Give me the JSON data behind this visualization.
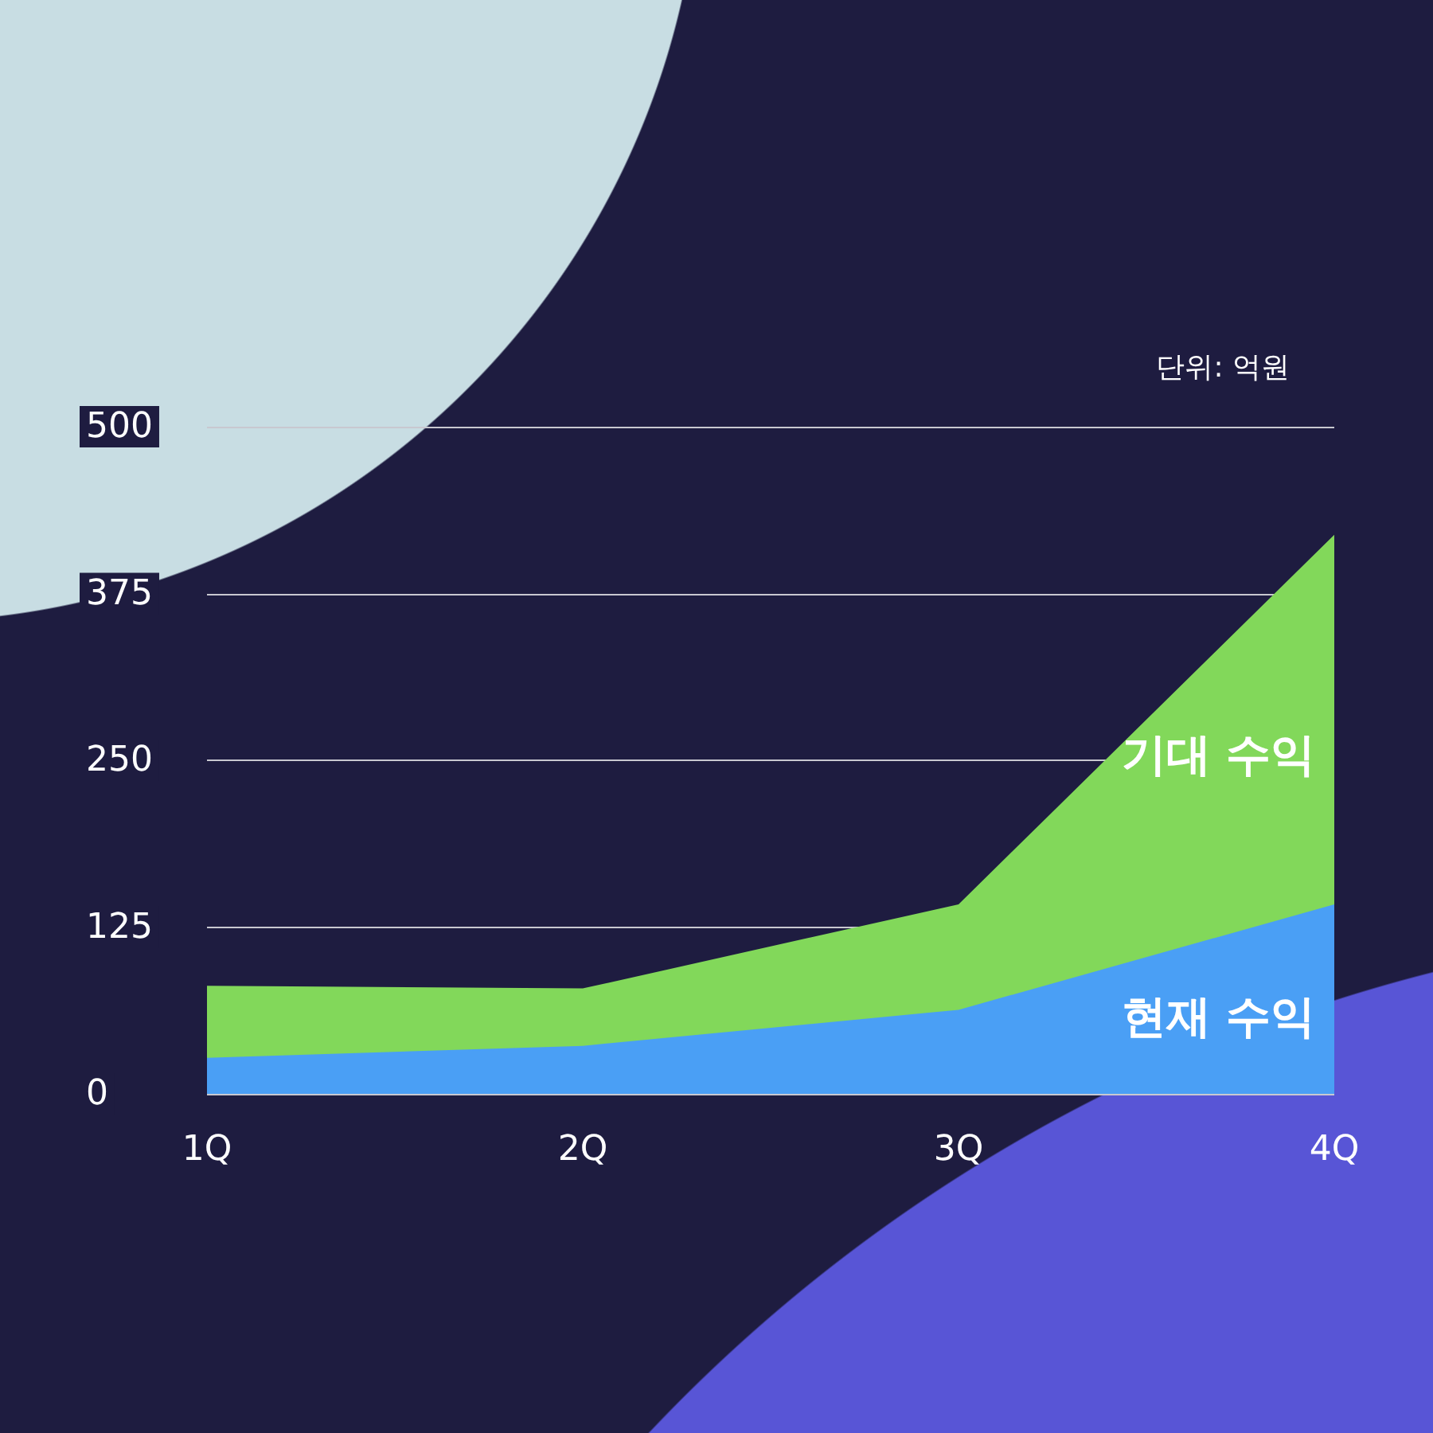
{
  "chart_data": {
    "type": "area",
    "categories": [
      "1Q",
      "2Q",
      "3Q",
      "4Q"
    ],
    "series": [
      {
        "name": "기대 수익",
        "color": "#82d85a",
        "values": [
          81,
          79,
          142,
          419
        ]
      },
      {
        "name": "현재 수익",
        "color": "#4a9ff5",
        "values": [
          27,
          36,
          63,
          142
        ]
      }
    ],
    "ylim": [
      0,
      500
    ],
    "yticks": [
      0,
      125,
      250,
      375,
      500
    ],
    "grid": "y",
    "legend": false,
    "marker": "none",
    "annotations": [
      "단위: 억원"
    ]
  }
}
